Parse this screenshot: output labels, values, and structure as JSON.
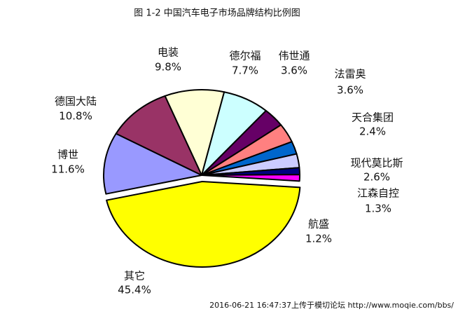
{
  "chart_data": {
    "type": "pie",
    "title": "图 1-2 中国汽车电子市场品牌结构比例图",
    "categories": [
      "电装",
      "德尔福",
      "伟世通",
      "法雷奥",
      "天合集团",
      "现代莫比斯",
      "江森自控",
      "航盛",
      "其它",
      "博世",
      "德国大陆"
    ],
    "values": [
      9.8,
      7.7,
      3.6,
      3.6,
      2.4,
      2.6,
      1.3,
      1.2,
      45.4,
      11.6,
      10.8
    ],
    "value_labels": [
      "9.8%",
      "7.7%",
      "3.6%",
      "3.6%",
      "2.4%",
      "2.6%",
      "1.3%",
      "1.2%",
      "45.4%",
      "11.6%",
      "10.8%"
    ],
    "colors": [
      "#ffffd5",
      "#ccffff",
      "#660066",
      "#ff8080",
      "#0066cc",
      "#ccccff",
      "#000080",
      "#ff00ff",
      "#ffff00",
      "#9999ff",
      "#993366"
    ],
    "exploded": "其它",
    "footer": "2016-06-21 16:47:37上传于模切论坛 http://www.moqie.com/bbs/"
  }
}
